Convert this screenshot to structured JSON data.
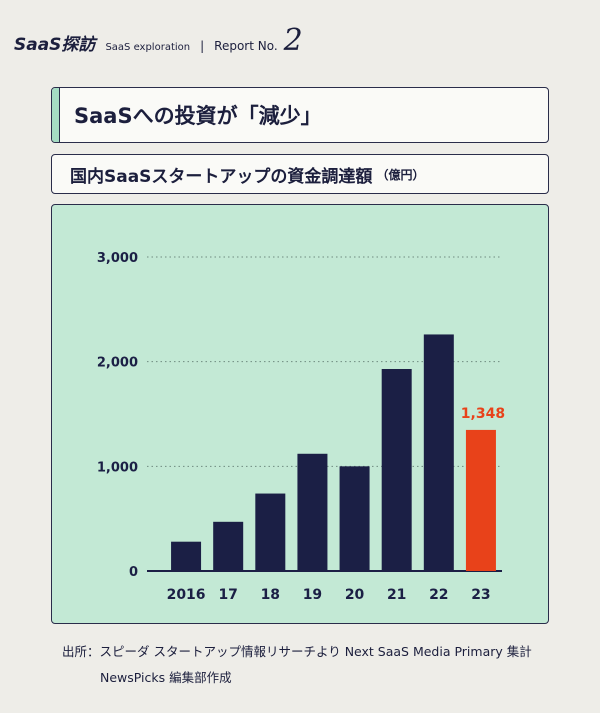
{
  "header": {
    "brand": "SaaS探訪",
    "brand_sub": "SaaS exploration",
    "separator": "|",
    "report_label": "Report No.",
    "report_number": "2"
  },
  "title": "SaaSへの投資が「減少」",
  "subtitle": "国内SaaSスタートアップの資金調達額",
  "subtitle_unit": "（億円）",
  "chart_data": {
    "type": "bar",
    "categories": [
      "2016",
      "17",
      "18",
      "19",
      "20",
      "21",
      "22",
      "23"
    ],
    "values": [
      280,
      470,
      740,
      1120,
      1000,
      1930,
      2260,
      1348
    ],
    "ylim": [
      0,
      3000
    ],
    "yticks": [
      "0",
      "1,000",
      "2,000",
      "3,000"
    ],
    "ytick_values": [
      0,
      1000,
      2000,
      3000
    ],
    "grid": "dotted horizontal",
    "bar_color": "#1b1f45",
    "highlight_color": "#e8421a",
    "highlight_index": 7,
    "highlight_label": "1,348"
  },
  "source": {
    "line1": "出所：スピーダ スタートアップ情報リサーチより Next SaaS Media Primary 集計",
    "line2": "NewsPicks 編集部作成"
  }
}
